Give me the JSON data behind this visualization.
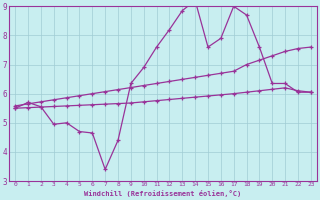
{
  "xlabel": "Windchill (Refroidissement éolien,°C)",
  "background_color": "#c8eef0",
  "grid_color": "#a0ccd4",
  "line_color": "#993399",
  "xlim": [
    -0.5,
    23.5
  ],
  "ylim": [
    3,
    9
  ],
  "xticks": [
    0,
    1,
    2,
    3,
    4,
    5,
    6,
    7,
    8,
    9,
    10,
    11,
    12,
    13,
    14,
    15,
    16,
    17,
    18,
    19,
    20,
    21,
    22,
    23
  ],
  "yticks": [
    3,
    4,
    5,
    6,
    7,
    8,
    9
  ],
  "line1_x": [
    0,
    1,
    2,
    3,
    4,
    5,
    6,
    7,
    8,
    9,
    10,
    11,
    12,
    13,
    14,
    15,
    16,
    17,
    18,
    19,
    20,
    21,
    22,
    23
  ],
  "line1_y": [
    5.5,
    5.7,
    5.55,
    4.95,
    5.0,
    4.7,
    4.65,
    3.4,
    4.4,
    6.35,
    6.9,
    7.6,
    8.2,
    8.85,
    9.2,
    7.6,
    7.9,
    9.0,
    8.7,
    7.6,
    6.35,
    6.35,
    6.05,
    6.05
  ],
  "line2_x": [
    0,
    1,
    2,
    3,
    4,
    5,
    6,
    7,
    8,
    9,
    10,
    11,
    12,
    13,
    14,
    15,
    16,
    17,
    18,
    19,
    20,
    21,
    22,
    23
  ],
  "line2_y": [
    5.58,
    5.65,
    5.72,
    5.79,
    5.86,
    5.93,
    6.0,
    6.07,
    6.14,
    6.21,
    6.28,
    6.35,
    6.42,
    6.49,
    6.56,
    6.63,
    6.7,
    6.77,
    7.0,
    7.15,
    7.3,
    7.45,
    7.55,
    7.6
  ],
  "line3_x": [
    0,
    1,
    2,
    3,
    4,
    5,
    6,
    7,
    8,
    9,
    10,
    11,
    12,
    13,
    14,
    15,
    16,
    17,
    18,
    19,
    20,
    21,
    22,
    23
  ],
  "line3_y": [
    5.5,
    5.52,
    5.54,
    5.56,
    5.58,
    5.6,
    5.62,
    5.64,
    5.66,
    5.68,
    5.72,
    5.76,
    5.8,
    5.84,
    5.88,
    5.92,
    5.96,
    6.0,
    6.05,
    6.1,
    6.15,
    6.2,
    6.1,
    6.05
  ]
}
